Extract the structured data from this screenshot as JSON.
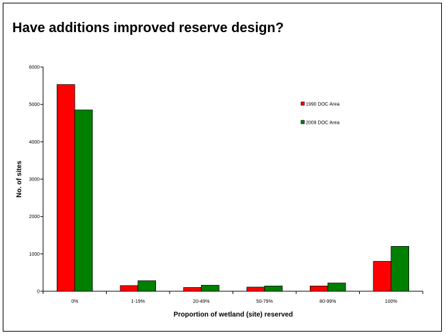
{
  "title": "Have additions improved reserve design?",
  "chart_data": {
    "type": "bar",
    "xlabel": "Proportion of wetland (site) reserved",
    "ylabel": "No. of sites",
    "ylim": [
      0,
      6000
    ],
    "yticks": [
      0,
      1000,
      2000,
      3000,
      4000,
      5000,
      6000
    ],
    "categories": [
      "0%",
      "1-19%",
      "20-49%",
      "50-79%",
      "80-99%",
      "100%"
    ],
    "series": [
      {
        "name": "1990 DOC Area",
        "color": "#ff0000",
        "values": [
          5530,
          150,
          100,
          110,
          140,
          800
        ]
      },
      {
        "name": "2009 DOC Area",
        "color": "#008000",
        "values": [
          4850,
          280,
          160,
          140,
          220,
          1200
        ]
      }
    ],
    "grid": false,
    "legend": "right"
  }
}
